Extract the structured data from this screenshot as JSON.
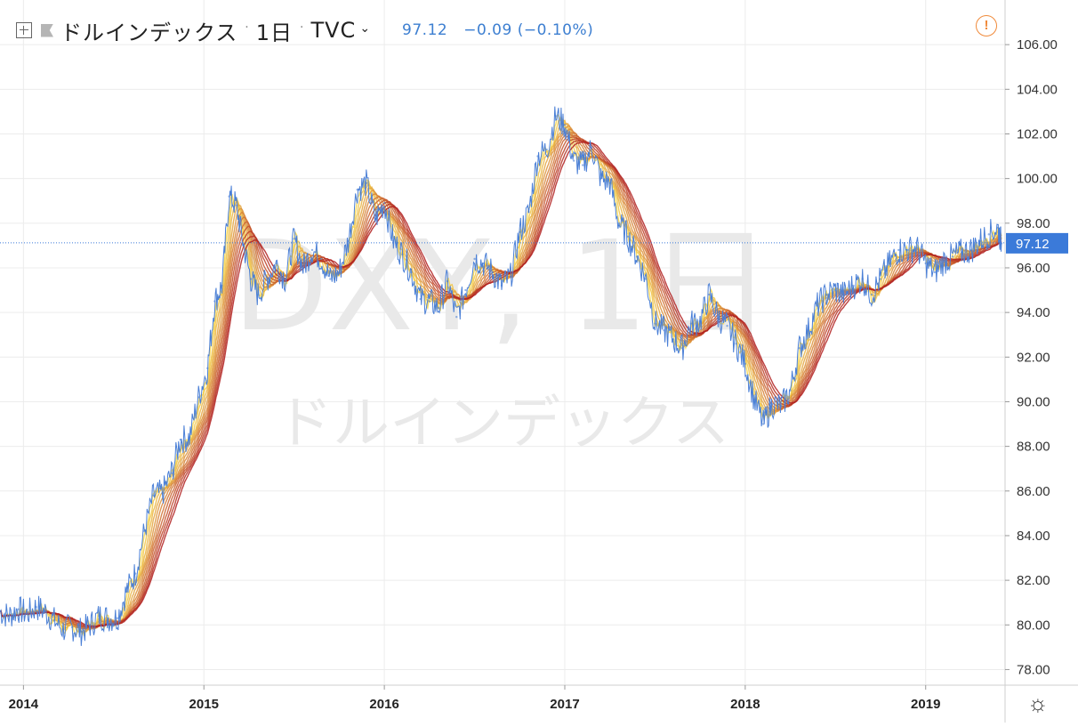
{
  "header": {
    "symbol_name": "ドルインデックス",
    "interval": "1日",
    "exchange": "TVC",
    "last_price": "97.12",
    "change": "−0.09 (−0.10%)",
    "icons": [
      "add-symbol-icon",
      "flag-icon",
      "chevron-down-icon",
      "warning-icon",
      "settings-icon"
    ]
  },
  "watermark": {
    "ticker": "DXY, 1日",
    "name": "ドルインデックス"
  },
  "price_label": "97.12",
  "colors": {
    "price_line": "#4a7fd6",
    "ribbon_start": "#f7d64a",
    "ribbon_end": "#b01f1f",
    "last_price_badge": "#3b7ad9",
    "warning": "#f08a3a"
  },
  "chart_data": {
    "type": "line",
    "title": "ドルインデックス",
    "xlabel": "",
    "ylabel": "",
    "xlim": [
      2013.87,
      2019.44
    ],
    "ylim": [
      77.3,
      108.0
    ],
    "x_ticks": [
      "2014",
      "2015",
      "2016",
      "2017",
      "2018",
      "2019"
    ],
    "x_tick_values": [
      2014,
      2015,
      2016,
      2017,
      2018,
      2019
    ],
    "y_ticks": [
      "78.00",
      "80.00",
      "82.00",
      "84.00",
      "86.00",
      "88.00",
      "90.00",
      "92.00",
      "94.00",
      "96.00",
      "98.00",
      "100.00",
      "102.00",
      "104.00",
      "106.00"
    ],
    "y_tick_values": [
      78,
      80,
      82,
      84,
      86,
      88,
      90,
      92,
      94,
      96,
      98,
      100,
      102,
      104,
      106
    ],
    "last_value": 97.12,
    "series": [
      {
        "x": [
          2013.87,
          2013.92,
          2013.97,
          2014.02,
          2014.07,
          2014.12,
          2014.17,
          2014.22,
          2014.27,
          2014.32,
          2014.37,
          2014.42,
          2014.47,
          2014.52,
          2014.57,
          2014.62,
          2014.67,
          2014.72,
          2014.77,
          2014.82,
          2014.87,
          2014.92,
          2014.97,
          2015.02,
          2015.06,
          2015.1,
          2015.14,
          2015.18,
          2015.22,
          2015.26,
          2015.3,
          2015.35,
          2015.4,
          2015.45,
          2015.5,
          2015.55,
          2015.6,
          2015.65,
          2015.7,
          2015.75,
          2015.8,
          2015.85,
          2015.9,
          2015.95,
          2016.0,
          2016.05,
          2016.1,
          2016.15,
          2016.2,
          2016.25,
          2016.3,
          2016.35,
          2016.4,
          2016.45,
          2016.5,
          2016.55,
          2016.6,
          2016.65,
          2016.7,
          2016.75,
          2016.8,
          2016.85,
          2016.9,
          2016.95,
          2017.0,
          2017.05,
          2017.1,
          2017.15,
          2017.2,
          2017.25,
          2017.3,
          2017.35,
          2017.4,
          2017.45,
          2017.5,
          2017.55,
          2017.6,
          2017.65,
          2017.7,
          2017.75,
          2017.8,
          2017.85,
          2017.9,
          2017.95,
          2018.0,
          2018.05,
          2018.1,
          2018.15,
          2018.2,
          2018.25,
          2018.3,
          2018.35,
          2018.4,
          2018.45,
          2018.5,
          2018.55,
          2018.6,
          2018.65,
          2018.7,
          2018.75,
          2018.8,
          2018.85,
          2018.9,
          2018.95,
          2019.0,
          2019.05,
          2019.1,
          2019.15,
          2019.2,
          2019.25,
          2019.3,
          2019.35,
          2019.4,
          2019.42
        ],
        "values": [
          80.6,
          80.4,
          80.7,
          80.5,
          80.8,
          80.6,
          80.2,
          79.8,
          79.9,
          79.7,
          80.0,
          80.4,
          80.3,
          80.3,
          81.5,
          82.3,
          84.2,
          85.8,
          85.9,
          86.8,
          88.3,
          88.4,
          90.2,
          91.5,
          94.5,
          95.2,
          99.2,
          98.8,
          97.0,
          95.5,
          94.8,
          95.5,
          96.2,
          95.5,
          97.3,
          96.0,
          96.8,
          96.4,
          95.5,
          95.8,
          97.2,
          99.5,
          99.8,
          98.2,
          98.9,
          97.2,
          96.6,
          95.8,
          94.6,
          94.5,
          94.2,
          95.4,
          93.8,
          95.0,
          96.4,
          96.2,
          95.8,
          95.2,
          95.6,
          97.6,
          98.5,
          101.0,
          101.3,
          102.8,
          102.4,
          100.8,
          100.6,
          101.4,
          100.0,
          99.8,
          98.0,
          97.4,
          96.5,
          95.5,
          93.5,
          93.2,
          92.8,
          92.4,
          93.5,
          93.6,
          94.8,
          93.8,
          93.4,
          92.6,
          91.7,
          90.1,
          89.0,
          89.9,
          89.8,
          90.5,
          92.4,
          93.2,
          94.3,
          94.8,
          95.0,
          94.8,
          95.2,
          95.5,
          94.8,
          95.5,
          96.2,
          96.8,
          96.8,
          96.9,
          96.2,
          95.8,
          96.3,
          96.5,
          96.7,
          96.8,
          97.2,
          97.5,
          97.8,
          97.1
        ]
      }
    ]
  }
}
